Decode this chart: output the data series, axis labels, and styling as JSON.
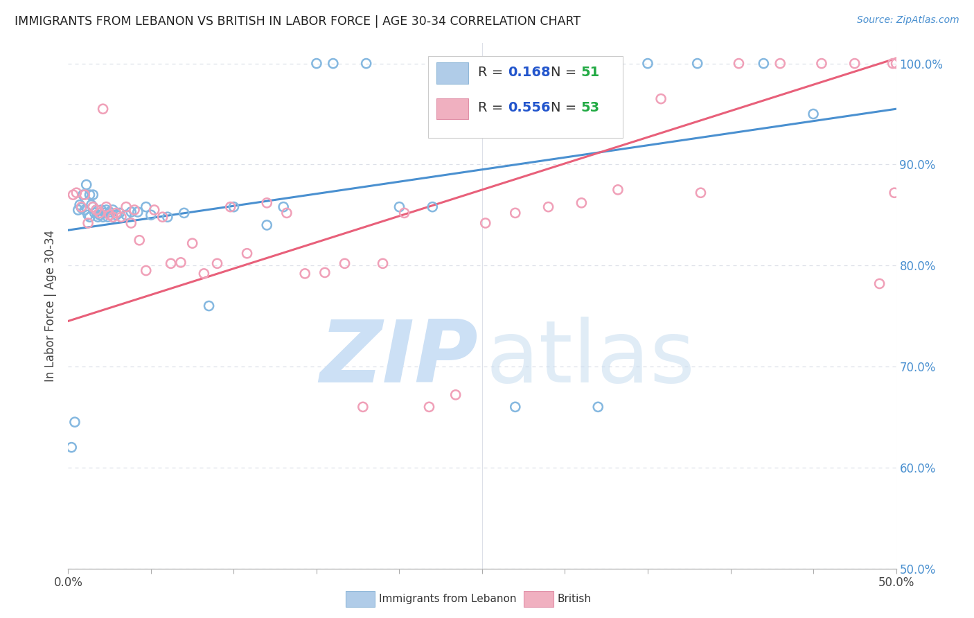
{
  "title": "IMMIGRANTS FROM LEBANON VS BRITISH IN LABOR FORCE | AGE 30-34 CORRELATION CHART",
  "source": "Source: ZipAtlas.com",
  "ylabel": "In Labor Force | Age 30-34",
  "xlim": [
    0.0,
    0.5
  ],
  "ylim": [
    0.5,
    1.02
  ],
  "yticks": [
    0.5,
    0.6,
    0.7,
    0.8,
    0.9,
    1.0
  ],
  "ytick_labels_right": [
    "50.0%",
    "60.0%",
    "70.0%",
    "80.0%",
    "90.0%",
    "100.0%"
  ],
  "xtick_labels": [
    "0.0%",
    "50.0%"
  ],
  "xtick_positions": [
    0.0,
    0.5
  ],
  "blue_R": 0.168,
  "blue_N": 51,
  "pink_R": 0.556,
  "pink_N": 53,
  "blue_color": "#85b8e0",
  "pink_color": "#f0a0b8",
  "blue_line_color": "#4a90d0",
  "pink_line_color": "#e8607a",
  "legend_R_color": "#2255cc",
  "legend_N_color": "#22aa44",
  "background_color": "#ffffff",
  "grid_color": "#dde0e8",
  "blue_x": [
    0.002,
    0.004,
    0.006,
    0.007,
    0.008,
    0.009,
    0.01,
    0.011,
    0.012,
    0.013,
    0.013,
    0.014,
    0.015,
    0.015,
    0.016,
    0.017,
    0.018,
    0.019,
    0.02,
    0.021,
    0.022,
    0.023,
    0.024,
    0.025,
    0.027,
    0.029,
    0.031,
    0.035,
    0.038,
    0.042,
    0.047,
    0.05,
    0.06,
    0.07,
    0.085,
    0.1,
    0.12,
    0.13,
    0.15,
    0.16,
    0.18,
    0.2,
    0.22,
    0.25,
    0.27,
    0.3,
    0.32,
    0.35,
    0.38,
    0.42,
    0.45
  ],
  "blue_y": [
    0.62,
    0.645,
    0.855,
    0.86,
    0.857,
    0.87,
    0.855,
    0.88,
    0.85,
    0.848,
    0.87,
    0.86,
    0.858,
    0.87,
    0.852,
    0.855,
    0.848,
    0.85,
    0.855,
    0.848,
    0.852,
    0.855,
    0.848,
    0.853,
    0.855,
    0.85,
    0.852,
    0.85,
    0.853,
    0.853,
    0.858,
    0.85,
    0.848,
    0.852,
    0.76,
    0.858,
    0.84,
    0.858,
    1.0,
    1.0,
    1.0,
    0.858,
    0.858,
    1.0,
    0.66,
    1.0,
    0.66,
    1.0,
    1.0,
    1.0,
    0.95
  ],
  "pink_x": [
    0.003,
    0.005,
    0.008,
    0.01,
    0.012,
    0.015,
    0.017,
    0.019,
    0.021,
    0.023,
    0.025,
    0.027,
    0.029,
    0.032,
    0.035,
    0.038,
    0.04,
    0.043,
    0.047,
    0.052,
    0.057,
    0.062,
    0.068,
    0.075,
    0.082,
    0.09,
    0.098,
    0.108,
    0.12,
    0.132,
    0.143,
    0.155,
    0.167,
    0.178,
    0.19,
    0.203,
    0.218,
    0.234,
    0.252,
    0.27,
    0.29,
    0.31,
    0.332,
    0.358,
    0.382,
    0.405,
    0.43,
    0.455,
    0.475,
    0.49,
    0.498,
    0.499,
    0.5
  ],
  "pink_y": [
    0.87,
    0.872,
    0.858,
    0.87,
    0.842,
    0.858,
    0.855,
    0.852,
    0.955,
    0.858,
    0.85,
    0.848,
    0.852,
    0.848,
    0.858,
    0.842,
    0.855,
    0.825,
    0.795,
    0.855,
    0.848,
    0.802,
    0.803,
    0.822,
    0.792,
    0.802,
    0.858,
    0.812,
    0.862,
    0.852,
    0.792,
    0.793,
    0.802,
    0.66,
    0.802,
    0.852,
    0.66,
    0.672,
    0.842,
    0.852,
    0.858,
    0.862,
    0.875,
    0.965,
    0.872,
    1.0,
    1.0,
    1.0,
    1.0,
    0.782,
    1.0,
    0.872,
    1.0
  ]
}
